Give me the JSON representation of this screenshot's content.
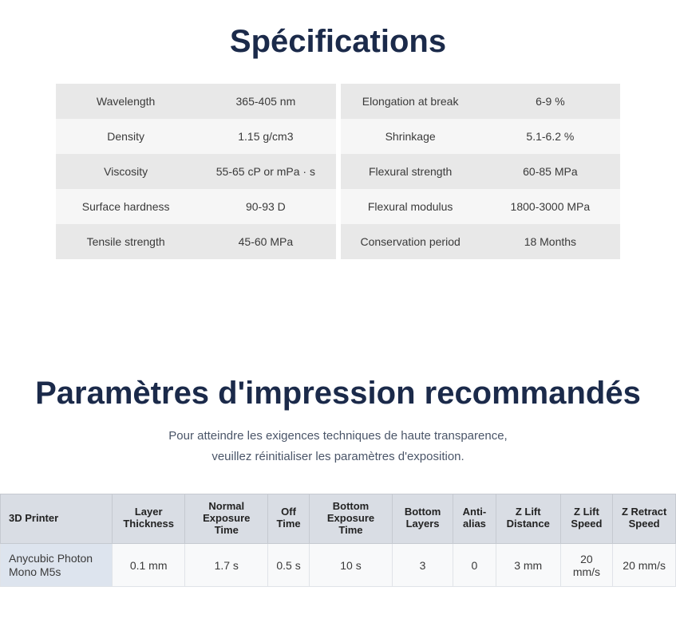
{
  "specSection": {
    "title": "Spécifications",
    "left": [
      {
        "label": "Wavelength",
        "value": "365-405 nm"
      },
      {
        "label": "Density",
        "value": "1.15 g/cm3"
      },
      {
        "label": "Viscosity",
        "value": "55-65  cP or mPa · s"
      },
      {
        "label": "Surface hardness",
        "value": "90-93 D"
      },
      {
        "label": "Tensile strength",
        "value": "45-60 MPa"
      }
    ],
    "right": [
      {
        "label": "Elongation at break",
        "value": "6-9 %"
      },
      {
        "label": "Shrinkage",
        "value": "5.1-6.2 %"
      },
      {
        "label": "Flexural strength",
        "value": "60-85 MPa"
      },
      {
        "label": "Flexural modulus",
        "value": "1800-3000 MPa"
      },
      {
        "label": "Conservation period",
        "value": "18 Months"
      }
    ]
  },
  "paramSection": {
    "title": "Paramètres d'impression recommandés",
    "subtitle_line1": "Pour atteindre les exigences techniques de haute transparence,",
    "subtitle_line2": "veuillez réinitialiser les paramètres d'exposition.",
    "headers": [
      "3D Printer",
      "Layer Thickness",
      "Normal Exposure Time",
      "Off Time",
      "Bottom Exposure Time",
      "Bottom Layers",
      "Anti-alias",
      "Z Lift Distance",
      "Z Lift Speed",
      "Z Retract Speed"
    ],
    "row": [
      "Anycubic Photon Mono M5s",
      "0.1 mm",
      "1.7 s",
      "0.5 s",
      "10 s",
      "3",
      "0",
      "3 mm",
      "20 mm/s",
      "20 mm/s"
    ]
  },
  "colors": {
    "title": "#1b2a4a",
    "row_odd": "#e8e8e8",
    "row_even": "#f6f6f6",
    "th_bg": "#d9dde4",
    "printer_cell_bg": "#dde4ee"
  }
}
